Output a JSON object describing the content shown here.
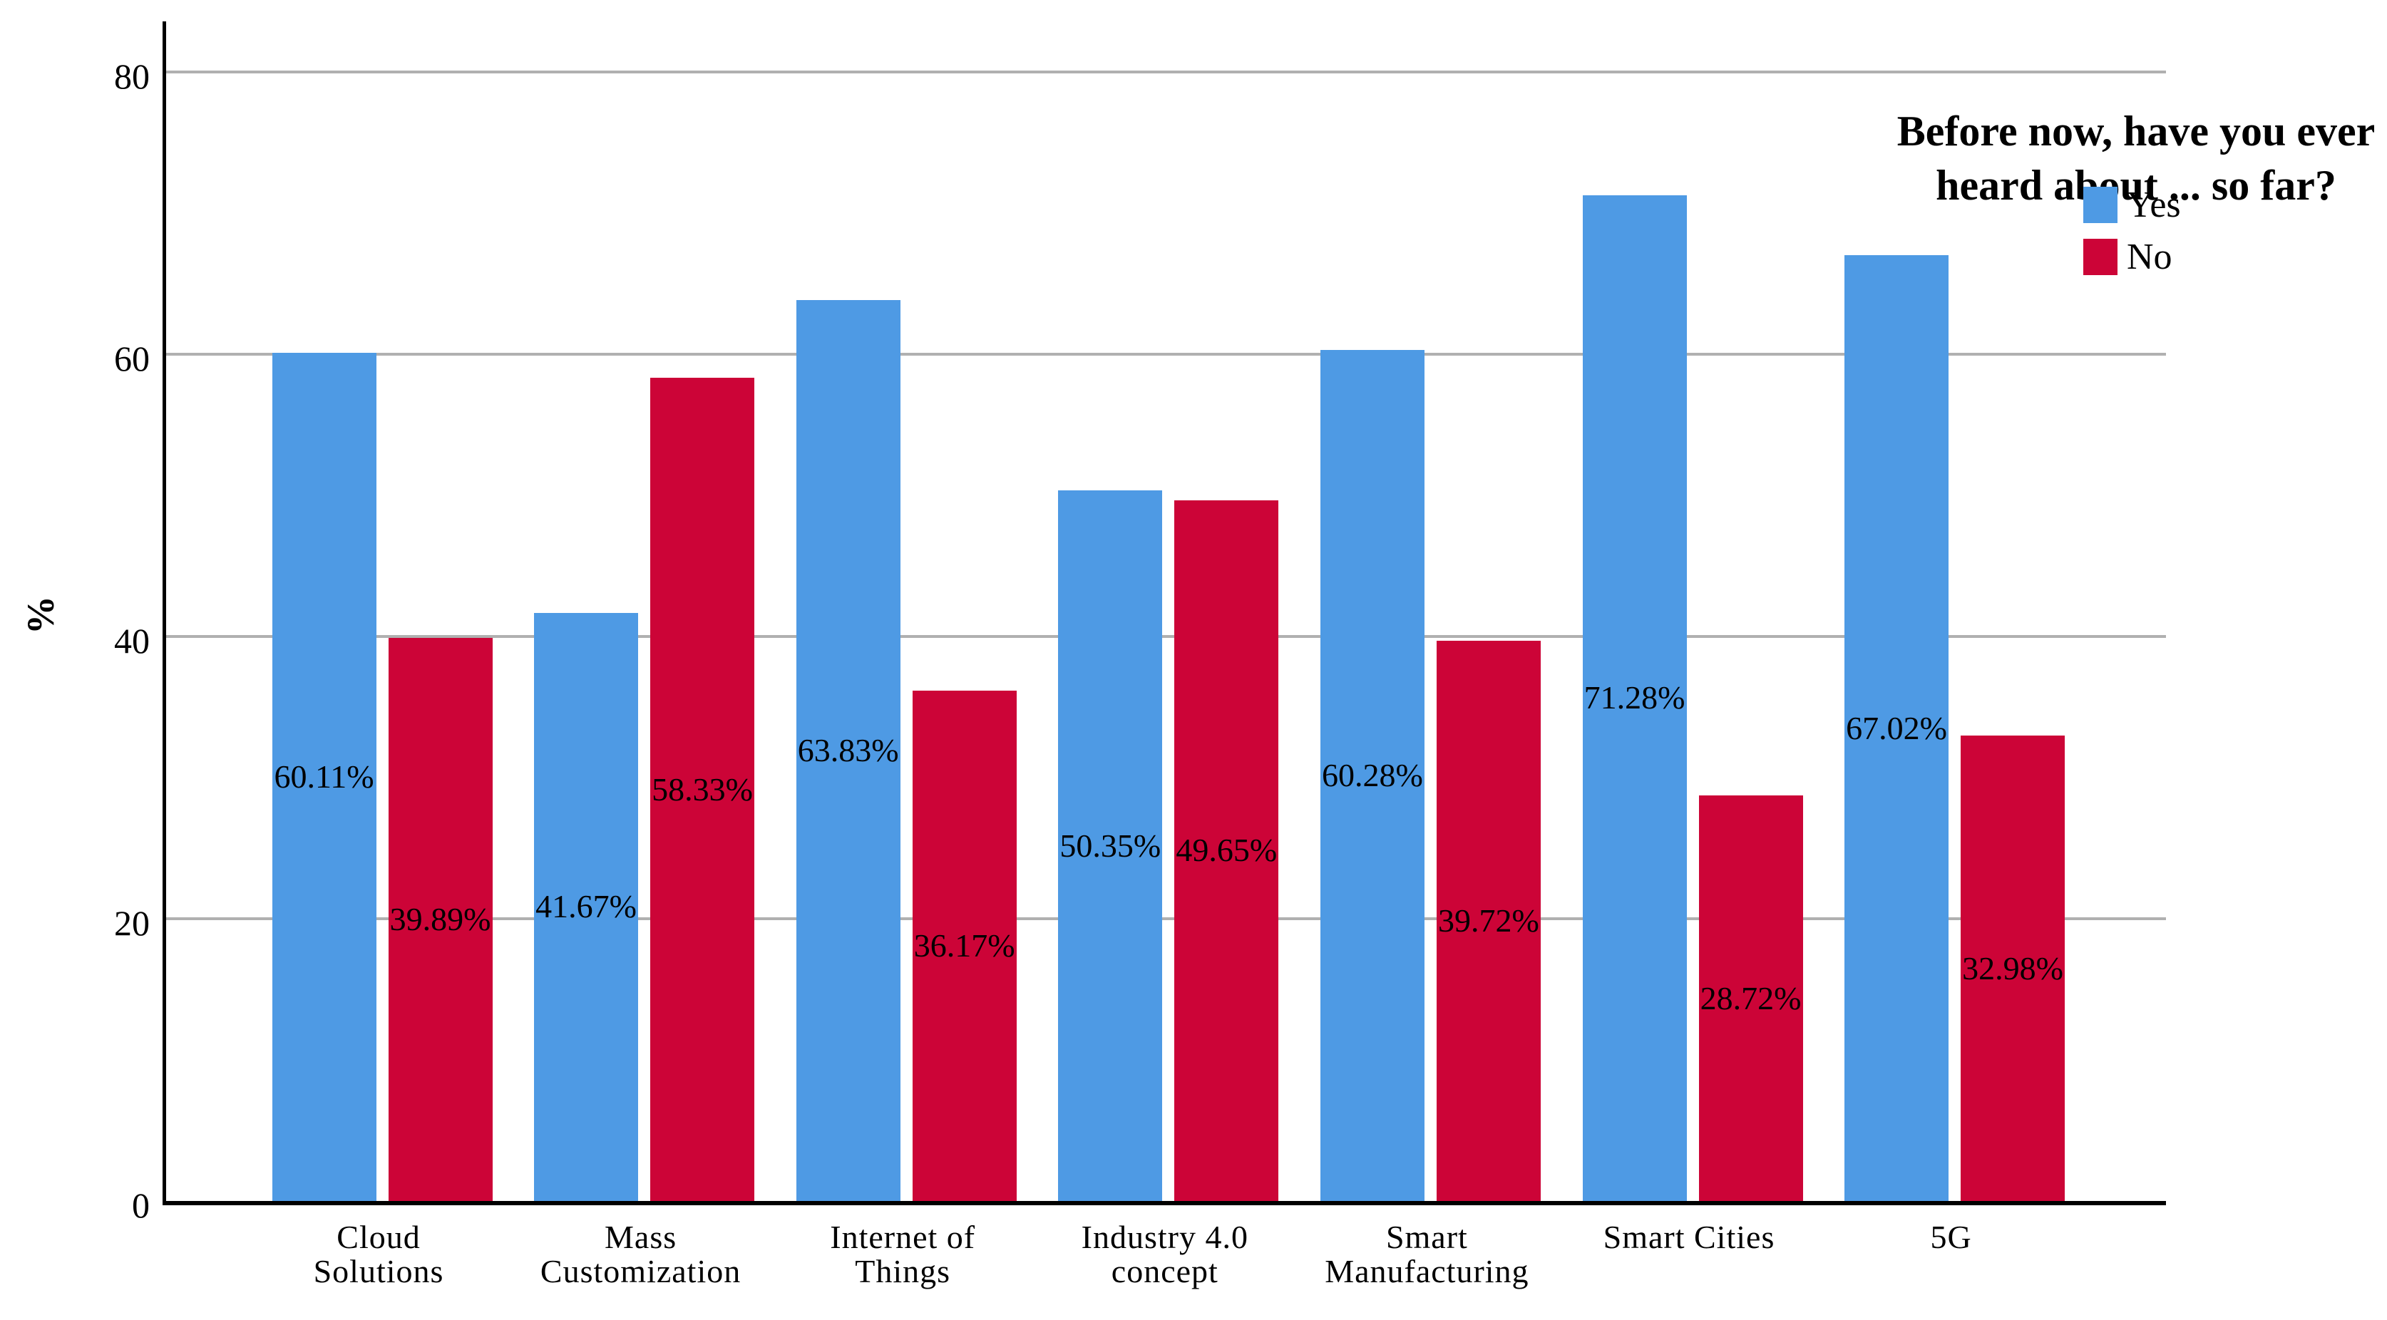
{
  "chart_data": {
    "type": "bar",
    "title": "",
    "ylabel": "%",
    "xlabel": "",
    "ylim": [
      0,
      80
    ],
    "yticks": [
      0,
      20,
      40,
      60,
      80
    ],
    "grid": true,
    "legend": {
      "position": "top-right",
      "title": "Before now, have you ever heard about ... so far?",
      "title_lines": [
        "Before now, have you ever",
        "heard about ... so far?"
      ]
    },
    "categories": [
      "Cloud Solutions",
      "Mass Customization",
      "Internet of Things",
      "Industry 4.0 concept",
      "Smart Manufacturing",
      "Smart Cities",
      "5G"
    ],
    "category_lines": [
      [
        "Cloud",
        "Solutions"
      ],
      [
        "Mass",
        "Customization"
      ],
      [
        "Internet of",
        "Things"
      ],
      [
        "Industry 4.0",
        "concept"
      ],
      [
        "Smart",
        "Manufacturing"
      ],
      [
        "Smart Cities"
      ],
      [
        "5G"
      ]
    ],
    "series": [
      {
        "name": "Yes",
        "color": "#4E9AE4",
        "values": [
          60.11,
          41.67,
          63.83,
          50.35,
          60.28,
          71.28,
          67.02
        ],
        "value_labels": [
          "60.11%",
          "41.67%",
          "63.83%",
          "50.35%",
          "60.28%",
          "71.28%",
          "67.02%"
        ]
      },
      {
        "name": "No",
        "color": "#CC0437",
        "values": [
          39.89,
          58.33,
          36.17,
          49.65,
          39.72,
          28.72,
          32.98
        ],
        "value_labels": [
          "39.89%",
          "58.33%",
          "36.17%",
          "49.65%",
          "39.72%",
          "28.72%",
          "32.98%"
        ]
      }
    ],
    "colors": {
      "background": "#FFFFFF",
      "axis": "#000000",
      "gridline": "#B0B0B0",
      "text": "#000000"
    }
  }
}
